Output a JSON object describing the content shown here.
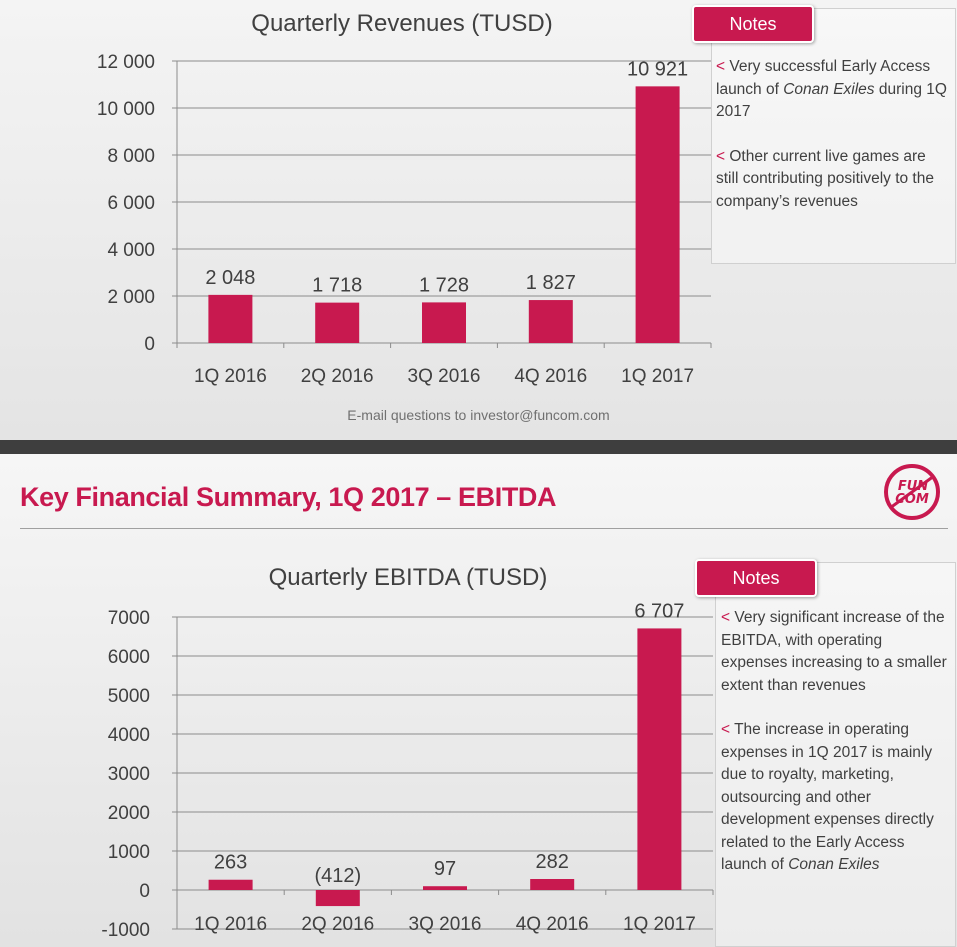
{
  "footer": "E-mail questions to investor@funcom.com",
  "page_title": "Key Financial Summary, 1Q 2017 – EBITDA",
  "logo_text": [
    "FUN",
    "COM"
  ],
  "notes_label": "Notes",
  "revenue_notes": [
    {
      "marker": "<",
      "parts": [
        {
          "t": " Very successful Early Access launch of ",
          "i": false
        },
        {
          "t": "Conan Exiles",
          "i": true
        },
        {
          "t": " during 1Q 2017",
          "i": false
        }
      ]
    },
    {
      "marker": "<",
      "parts": [
        {
          "t": " Other current live games are still contributing positively to the company’s revenues",
          "i": false
        }
      ]
    }
  ],
  "ebitda_notes": [
    {
      "marker": "<",
      "parts": [
        {
          "t": " Very significant increase of the EBITDA, with operating expenses increasing to a smaller extent than revenues",
          "i": false
        }
      ]
    },
    {
      "marker": "<",
      "parts": [
        {
          "t": " The increase in operating expenses in 1Q 2017 is mainly due to royalty, marketing, outsourcing and other development expenses directly related to the Early Access launch of ",
          "i": false
        },
        {
          "t": "Conan Exiles",
          "i": true
        }
      ]
    }
  ],
  "colors": {
    "accent": "#c8194f",
    "text": "#404040",
    "divider": "#3e3e3e"
  },
  "chart_data": [
    {
      "type": "bar",
      "title": "Quarterly Revenues (TUSD)",
      "categories": [
        "1Q 2016",
        "2Q 2016",
        "3Q 2016",
        "4Q 2016",
        "1Q 2017"
      ],
      "values": [
        2048,
        1718,
        1728,
        1827,
        10921
      ],
      "data_labels": [
        "2 048",
        "1 718",
        "1 728",
        "1 827",
        "10 921"
      ],
      "yticks": [
        0,
        2000,
        4000,
        6000,
        8000,
        10000,
        12000
      ],
      "ytick_labels": [
        "0",
        "2 000",
        "4 000",
        "6 000",
        "8 000",
        "10 000",
        "12 000"
      ],
      "ylim": [
        0,
        12000
      ],
      "grid": true,
      "legend": "none"
    },
    {
      "type": "bar",
      "title": "Quarterly EBITDA (TUSD)",
      "categories": [
        "1Q 2016",
        "2Q 2016",
        "3Q 2016",
        "4Q 2016",
        "1Q 2017"
      ],
      "values": [
        263,
        -412,
        97,
        282,
        6707
      ],
      "data_labels": [
        "263",
        "(412)",
        "97",
        "282",
        "6 707"
      ],
      "yticks": [
        -1000,
        0,
        1000,
        2000,
        3000,
        4000,
        5000,
        6000,
        7000
      ],
      "ytick_labels": [
        "-1000",
        "0",
        "1000",
        "2000",
        "3000",
        "4000",
        "5000",
        "6000",
        "7000"
      ],
      "ylim": [
        -1000,
        7000
      ],
      "grid": true,
      "legend": "none"
    }
  ]
}
